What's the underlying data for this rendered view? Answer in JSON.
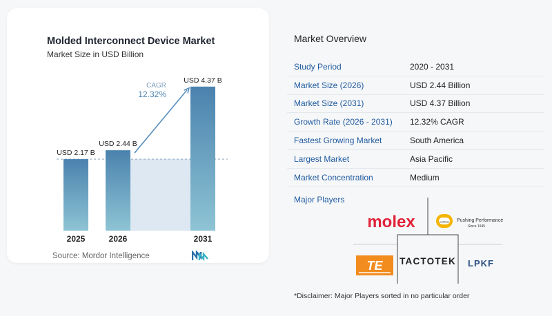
{
  "chart_data": {
    "type": "bar",
    "title": "Molded Interconnect Device Market",
    "subtitle": "Market Size in USD Billion",
    "categories": [
      "2025",
      "2026",
      "2031"
    ],
    "values": [
      2.17,
      2.44,
      4.37
    ],
    "value_labels": [
      "USD 2.17 B",
      "USD 2.44 B",
      "USD 4.37 B"
    ],
    "cagr_label": "CAGR",
    "cagr_value": "12.32%",
    "ylim": [
      0,
      4.7
    ],
    "colors": {
      "bar": "#5b93bc",
      "bar_top": "#4b82ae",
      "bar_bottom": "#8ec4d4",
      "shade": "#dde8f2",
      "arrow": "#5b8fbe"
    }
  },
  "source": "Source:  Mordor Intelligence",
  "overview": {
    "title": "Market Overview",
    "rows": [
      {
        "label": "Study Period",
        "value": "2020 - 2031"
      },
      {
        "label": "Market Size (2026)",
        "value": "USD 2.44 Billion"
      },
      {
        "label": "Market Size (2031)",
        "value": "USD 4.37 Billion"
      },
      {
        "label": "Growth Rate (2026 - 2031)",
        "value": "12.32% CAGR"
      },
      {
        "label": "Fastest Growing Market",
        "value": "South America"
      },
      {
        "label": "Largest Market",
        "value": "Asia Pacific"
      },
      {
        "label": "Market Concentration",
        "value": "Medium"
      }
    ]
  },
  "players": {
    "title": "Major Players",
    "molex": "molex",
    "harting_tagline": "Pushing Performance",
    "harting_since": "Since 1945",
    "harting_badge": "HARTING",
    "te": "TE",
    "tactotek": "TACTOTEK",
    "lpkf": "LPKF"
  },
  "disclaimer": "*Disclaimer: Major Players sorted in no particular order"
}
